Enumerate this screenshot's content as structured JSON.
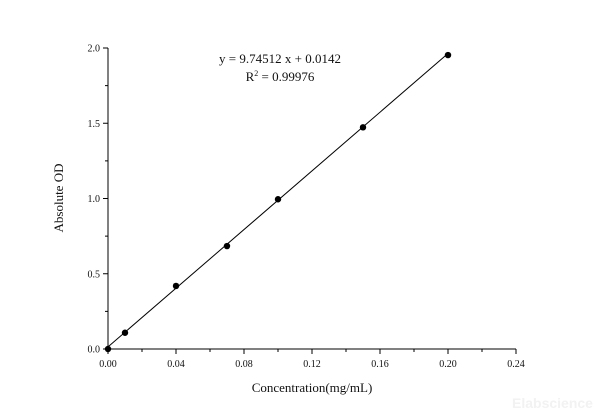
{
  "chart_data": {
    "type": "scatter",
    "title": "",
    "xlabel": "Concentration(mg/mL)",
    "ylabel": "Absolute OD",
    "xlim": [
      0,
      0.24
    ],
    "ylim": [
      0,
      2.0
    ],
    "xticks": [
      "0.00",
      "0.04",
      "0.08",
      "0.12",
      "0.16",
      "0.20",
      "0.24"
    ],
    "yticks": [
      "0.0",
      "0.5",
      "1.0",
      "1.5",
      "2.0"
    ],
    "grid": false,
    "points": [
      {
        "x": 0.0,
        "y": 0.0
      },
      {
        "x": 0.01,
        "y": 0.108
      },
      {
        "x": 0.04,
        "y": 0.419
      },
      {
        "x": 0.07,
        "y": 0.684
      },
      {
        "x": 0.1,
        "y": 0.995
      },
      {
        "x": 0.15,
        "y": 1.473
      },
      {
        "x": 0.2,
        "y": 1.953
      }
    ],
    "fit": {
      "slope": 9.74512,
      "intercept": 0.0142,
      "x_range": [
        0,
        0.2
      ]
    },
    "annotations": {
      "equation": "y = 9.74512 x + 0.0142",
      "r2_prefix": "R",
      "r2_sup": "2",
      "r2_value": " = 0.99976"
    },
    "colors": {
      "points": "#000000",
      "line": "#000000"
    }
  },
  "watermark": "Elabscience"
}
